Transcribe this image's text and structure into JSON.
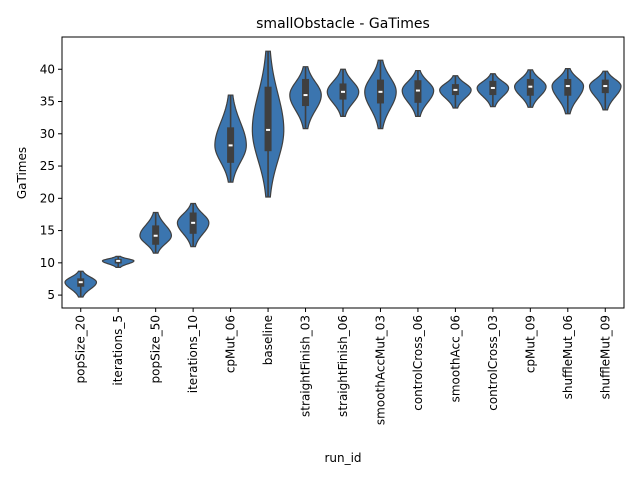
{
  "chart_data": {
    "type": "violin",
    "title": "smallObstacle - GaTimes",
    "xlabel": "run_id",
    "ylabel": "GaTimes",
    "ylim": [
      3.0,
      45.0
    ],
    "yticks": [
      5,
      10,
      15,
      20,
      25,
      30,
      35,
      40
    ],
    "grid": false,
    "colors": {
      "violin": "#3b75af",
      "box": "#3f3f3f",
      "median": "#ffffff",
      "axes": "#000000"
    },
    "categories": [
      "popSize_20",
      "iterations_5",
      "popSize_50",
      "iterations_10",
      "cpMut_06",
      "baseline",
      "straightFinish_03",
      "straightFinish_06",
      "smoothAccMut_03",
      "controlCross_06",
      "smoothAcc_06",
      "controlCross_03",
      "cpMut_09",
      "shuffleMut_06",
      "shuffleMut_09"
    ],
    "series": [
      {
        "min": 4.7,
        "q1": 6.3,
        "median": 7.0,
        "q3": 7.6,
        "max": 8.7
      },
      {
        "min": 9.3,
        "q1": 9.9,
        "median": 10.3,
        "q3": 10.6,
        "max": 11.0
      },
      {
        "min": 11.5,
        "q1": 12.8,
        "median": 14.2,
        "q3": 15.8,
        "max": 17.8
      },
      {
        "min": 12.5,
        "q1": 14.5,
        "median": 16.2,
        "q3": 17.8,
        "max": 19.2
      },
      {
        "min": 22.5,
        "q1": 25.5,
        "median": 28.2,
        "q3": 31.0,
        "max": 36.0
      },
      {
        "min": 20.2,
        "q1": 27.3,
        "median": 30.6,
        "q3": 37.3,
        "max": 42.8
      },
      {
        "min": 30.8,
        "q1": 34.3,
        "median": 36.0,
        "q3": 38.5,
        "max": 40.4
      },
      {
        "min": 32.7,
        "q1": 35.3,
        "median": 36.5,
        "q3": 37.8,
        "max": 40.0
      },
      {
        "min": 30.8,
        "q1": 34.7,
        "median": 36.5,
        "q3": 38.4,
        "max": 41.4
      },
      {
        "min": 32.7,
        "q1": 34.8,
        "median": 36.7,
        "q3": 38.3,
        "max": 39.8
      },
      {
        "min": 34.0,
        "q1": 36.0,
        "median": 36.8,
        "q3": 37.7,
        "max": 39.0
      },
      {
        "min": 34.2,
        "q1": 36.0,
        "median": 37.1,
        "q3": 38.2,
        "max": 39.3
      },
      {
        "min": 34.1,
        "q1": 35.9,
        "median": 37.3,
        "q3": 38.5,
        "max": 39.9
      },
      {
        "min": 33.1,
        "q1": 35.9,
        "median": 37.4,
        "q3": 38.5,
        "max": 40.1
      },
      {
        "min": 33.7,
        "q1": 36.3,
        "median": 37.4,
        "q3": 38.4,
        "max": 39.7
      }
    ]
  }
}
